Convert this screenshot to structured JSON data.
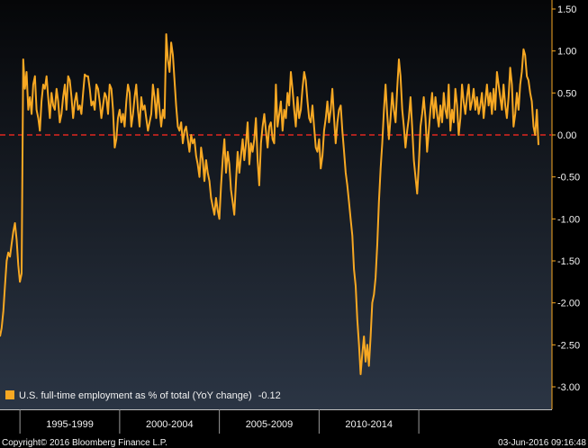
{
  "chart_data": {
    "type": "line",
    "legend": {
      "label": "U.S. full-time employment as % of total (YoY change)",
      "last_value": "-0.12",
      "placement": "bottom-left"
    },
    "x_categories": [
      "1995-1999",
      "2000-2004",
      "2005-2009",
      "2010-2014"
    ],
    "y_range": [
      -3.0,
      1.5
    ],
    "y_ticks": [
      "1.50",
      "1.00",
      "0.50",
      "0.00",
      "-0.50",
      "-1.00",
      "-1.50",
      "-2.00",
      "-2.50",
      "-3.00"
    ],
    "reference_line": {
      "y": 0.0,
      "style": "dashed",
      "color": "#e0261f"
    },
    "series": [
      {
        "color": "#f7a823",
        "start": "1994-01",
        "frequency": "monthly",
        "values": [
          -2.4,
          -2.3,
          -2.1,
          -1.8,
          -1.5,
          -1.4,
          -1.45,
          -1.3,
          -1.15,
          -1.05,
          -1.25,
          -1.55,
          -1.75,
          -1.65,
          0.9,
          0.55,
          0.75,
          0.3,
          0.45,
          0.25,
          0.6,
          0.7,
          0.3,
          0.2,
          0.05,
          0.4,
          0.6,
          0.55,
          0.7,
          0.45,
          0.2,
          0.5,
          0.35,
          0.3,
          0.55,
          0.4,
          0.15,
          0.25,
          0.45,
          0.6,
          0.3,
          0.7,
          0.65,
          0.45,
          0.2,
          0.4,
          0.5,
          0.3,
          0.35,
          0.25,
          0.5,
          0.72,
          0.7,
          0.7,
          0.55,
          0.35,
          0.4,
          0.3,
          0.6,
          0.55,
          0.4,
          0.2,
          0.35,
          0.5,
          0.45,
          0.25,
          0.6,
          0.55,
          0.3,
          -0.15,
          -0.05,
          0.2,
          0.3,
          0.15,
          0.25,
          0.1,
          0.4,
          0.6,
          0.5,
          0.1,
          0.25,
          0.45,
          0.6,
          0.3,
          0.1,
          0.45,
          0.3,
          0.35,
          0.2,
          0.05,
          0.15,
          0.25,
          0.6,
          0.45,
          0.2,
          0.55,
          0.3,
          0.1,
          0.3,
          0.2,
          1.2,
          0.9,
          0.75,
          1.1,
          0.95,
          0.65,
          0.35,
          0.1,
          0.05,
          0.15,
          -0.1,
          0.05,
          0.1,
          -0.05,
          -0.2,
          0.0,
          -0.1,
          -0.05,
          -0.25,
          -0.35,
          -0.5,
          -0.15,
          -0.3,
          -0.55,
          -0.3,
          -0.45,
          -0.55,
          -0.75,
          -0.85,
          -0.95,
          -0.75,
          -0.9,
          -1.0,
          -0.6,
          -0.3,
          -0.05,
          -0.45,
          -0.2,
          -0.35,
          -0.65,
          -0.8,
          -0.95,
          -0.55,
          -0.2,
          -0.45,
          -0.25,
          -0.05,
          -0.3,
          -0.1,
          0.15,
          -0.35,
          -0.1,
          -0.2,
          -0.05,
          0.2,
          -0.3,
          -0.6,
          -0.1,
          0.1,
          0.25,
          0.05,
          -0.15,
          0.1,
          0.15,
          -0.05,
          -0.1,
          0.6,
          0.1,
          0.25,
          0.4,
          0.05,
          0.3,
          0.2,
          0.5,
          0.35,
          0.75,
          0.55,
          0.3,
          0.1,
          0.45,
          0.2,
          0.3,
          0.55,
          0.75,
          0.65,
          0.4,
          0.2,
          0.15,
          0.35,
          0.1,
          -0.15,
          -0.2,
          -0.05,
          -0.4,
          -0.25,
          0.05,
          0.2,
          0.4,
          0.15,
          0.3,
          0.55,
          0.2,
          -0.1,
          0.15,
          0.3,
          0.35,
          0.05,
          -0.2,
          -0.45,
          -0.6,
          -0.8,
          -1.0,
          -1.2,
          -1.6,
          -1.8,
          -2.2,
          -2.5,
          -2.85,
          -2.6,
          -2.4,
          -2.7,
          -2.5,
          -2.75,
          -2.4,
          -2.0,
          -1.9,
          -1.7,
          -1.3,
          -0.8,
          -0.4,
          -0.1,
          0.3,
          0.6,
          0.25,
          -0.05,
          0.2,
          0.5,
          0.3,
          0.15,
          0.55,
          0.9,
          0.7,
          0.3,
          0.1,
          -0.15,
          0.05,
          0.2,
          0.45,
          0.1,
          -0.3,
          -0.5,
          -0.7,
          -0.35,
          0.1,
          0.25,
          0.45,
          0.2,
          -0.2,
          0.05,
          0.3,
          0.5,
          0.2,
          0.45,
          0.25,
          0.1,
          0.35,
          0.15,
          0.5,
          0.3,
          0.2,
          0.6,
          0.05,
          0.3,
          0.15,
          0.55,
          0.35,
          0.0,
          0.2,
          0.6,
          0.4,
          0.25,
          0.45,
          0.6,
          0.3,
          0.4,
          0.55,
          0.3,
          0.45,
          0.25,
          0.35,
          0.5,
          0.2,
          0.4,
          0.6,
          0.35,
          0.5,
          0.25,
          0.55,
          0.3,
          0.75,
          0.6,
          0.45,
          0.3,
          0.6,
          0.35,
          0.2,
          0.45,
          0.8,
          0.6,
          0.1,
          0.25,
          0.5,
          0.3,
          0.6,
          0.75,
          1.02,
          0.95,
          0.7,
          0.65,
          0.5,
          0.4,
          0.1,
          0.0,
          0.3,
          -0.12
        ]
      }
    ]
  },
  "footer": {
    "copyright": "Copyright© 2016 Bloomberg Finance L.P.",
    "timestamp": "03-Jun-2016 09:16:48"
  }
}
